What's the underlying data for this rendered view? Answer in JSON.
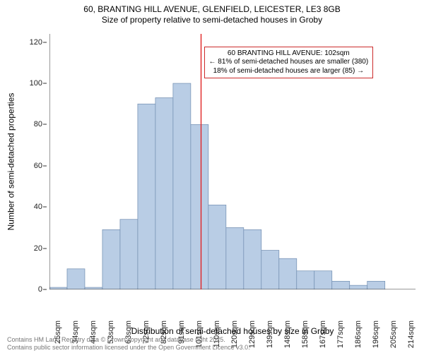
{
  "title_line1": "60, BRANTING HILL AVENUE, GLENFIELD, LEICESTER, LE3 8GB",
  "title_line2": "Size of property relative to semi-detached houses in Groby",
  "ylabel": "Number of semi-detached properties",
  "xlabel": "Distribution of semi-detached houses by size in Groby",
  "caption_line1": "Contains HM Land Registry data © Crown copyright and database right 2025.",
  "caption_line2": "Contains public sector information licensed under the Open Government Licence v3.0.",
  "annotation": {
    "line1": "60 BRANTING HILL AVENUE: 102sqm",
    "line2": "← 81% of semi-detached houses are smaller (380)",
    "line3": "18% of semi-detached houses are larger (85) →",
    "border_color": "#cc2a2a"
  },
  "chart": {
    "type": "histogram",
    "background_color": "#ffffff",
    "axis_color": "#333333",
    "bar_fill": "#b9cde5",
    "bar_stroke": "#6f8caf",
    "marker_line_color": "#e02424",
    "marker_x": 102,
    "xlim": [
      20,
      218
    ],
    "ylim": [
      0,
      124
    ],
    "ytick_step": 20,
    "bin_width": 9.55,
    "bin_start": 20,
    "values": [
      1,
      10,
      1,
      29,
      34,
      90,
      93,
      100,
      80,
      41,
      30,
      29,
      19,
      15,
      9,
      9,
      4,
      2,
      4,
      0,
      0
    ],
    "xticks": [
      "25sqm",
      "34sqm",
      "44sqm",
      "53sqm",
      "63sqm",
      "72sqm",
      "82sqm",
      "91sqm",
      "101sqm",
      "110sqm",
      "120sqm",
      "129sqm",
      "139sqm",
      "148sqm",
      "158sqm",
      "167sqm",
      "177sqm",
      "186sqm",
      "196sqm",
      "205sqm",
      "214sqm"
    ],
    "title_fontsize": 12,
    "label_fontsize": 12,
    "tick_fontsize": 11,
    "caption_color": "#777777"
  }
}
